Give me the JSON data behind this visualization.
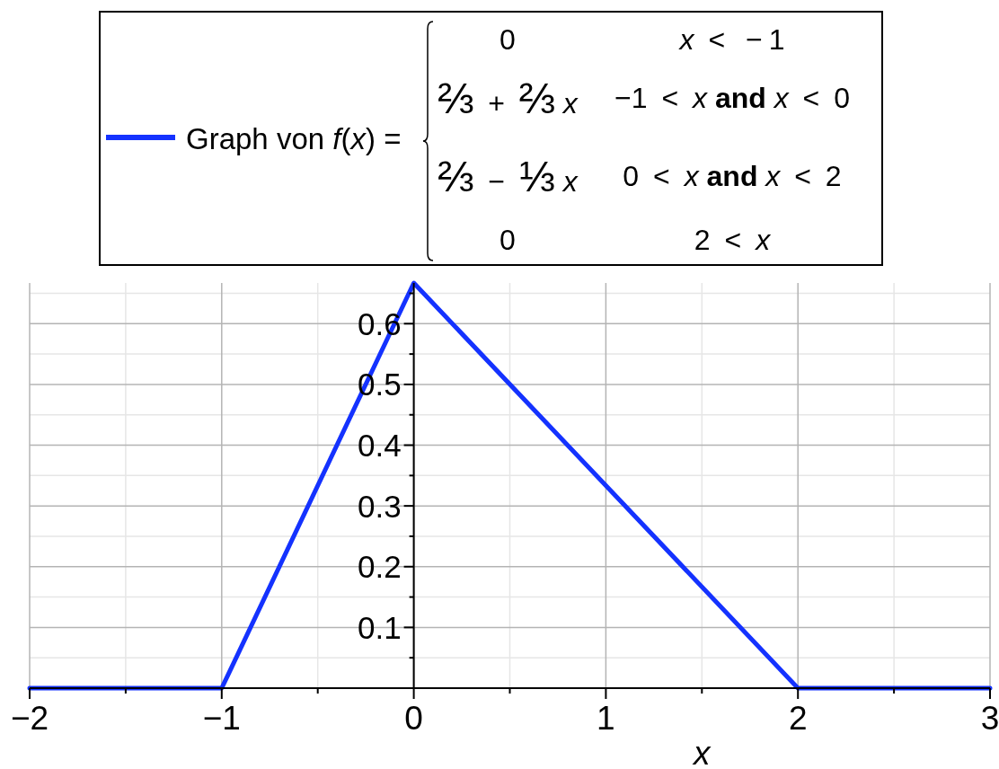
{
  "chart_data": {
    "type": "line",
    "x": [
      -2,
      -1,
      0,
      2,
      3
    ],
    "series": [
      {
        "name": "Graph von f(x) =",
        "color": "#1432ff",
        "values": [
          0,
          0,
          0.667,
          0,
          0
        ]
      }
    ],
    "annotations": [
      "0",
      "x < −1",
      "⅔ + ⅔ x",
      "−1 < x and x < 0",
      "⅔ − ⅓ x",
      "0 < x and x < 2",
      "0",
      "2 < x"
    ],
    "xlabel": "x",
    "xlim": [
      -2,
      3
    ],
    "xticks": [
      {
        "value": -2,
        "label": "−2"
      },
      {
        "value": -1.5,
        "label": null
      },
      {
        "value": -1,
        "label": "−1"
      },
      {
        "value": -0.5,
        "label": null
      },
      0,
      {
        "value": 0.5,
        "label": null
      },
      1,
      {
        "value": 1.5,
        "label": null
      },
      2,
      {
        "value": 2.5,
        "label": null
      },
      3
    ],
    "ylim": [
      0,
      0.667
    ],
    "yticks": [
      {
        "value": 0.05,
        "label": null
      },
      0.1,
      {
        "value": 0.15,
        "label": null
      },
      0.2,
      {
        "value": 0.25,
        "label": null
      },
      0.3,
      {
        "value": 0.35,
        "label": null
      },
      0.4,
      {
        "value": 0.45,
        "label": null
      },
      0.5,
      {
        "value": 0.55,
        "label": null
      },
      0.6,
      {
        "value": 0.65,
        "label": null
      }
    ],
    "grid": true,
    "legend": "top"
  }
}
